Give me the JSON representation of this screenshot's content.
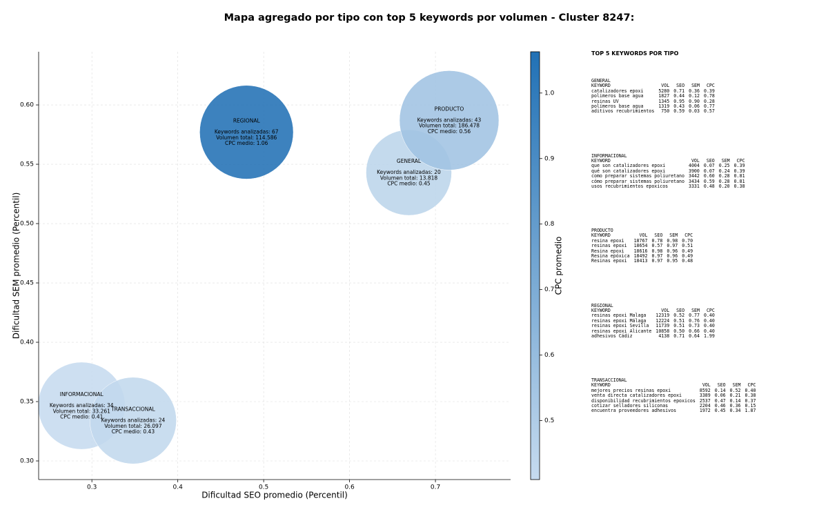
{
  "chart_data": {
    "type": "bubble",
    "title": "Mapa agregado por tipo con top 5 keywords por volumen - Cluster 8247:",
    "x_label": "Dificultad SEO promedio (Percentil)",
    "y_label": "Dificultad SEM promedio (Percentil)",
    "colorbar_label": "CPC promedio",
    "xlim": [
      0.238,
      0.7875
    ],
    "ylim": [
      0.2843,
      0.6448
    ],
    "xticks": [
      0.3,
      0.4,
      0.5,
      0.6,
      0.7
    ],
    "yticks": [
      {
        "value": 0.3,
        "label": "0.30"
      },
      {
        "value": 0.35,
        "label": "0.35"
      },
      {
        "value": 0.4,
        "label": "0.40"
      },
      {
        "value": 0.45,
        "label": "0.45"
      },
      {
        "value": 0.5,
        "label": "0.50"
      },
      {
        "value": 0.55,
        "label": "0.55"
      },
      {
        "value": 0.6,
        "label": "0.60"
      }
    ],
    "clim": [
      0.41,
      1.063
    ],
    "cticks": [
      0.5,
      0.6,
      0.7,
      0.8,
      0.9,
      {
        "value": 1.0,
        "label": "1.0"
      }
    ],
    "colormap": [
      "#c6dbef",
      "#2171b5"
    ],
    "grid": true,
    "series": [
      {
        "name": "GENERAL",
        "x": 0.669,
        "y": 0.543,
        "volume": 13818,
        "cpc": 0.45,
        "value_labels": [
          "Keywords analizadas: 20",
          "Volumen total: 13.818",
          "CPC medio: 0.45"
        ]
      },
      {
        "name": "INFORMACIONAL",
        "x": 0.288,
        "y": 0.3465,
        "volume": 33261,
        "cpc": 0.41,
        "value_labels": [
          "Keywords analizadas: 34",
          "Volumen total: 33.261",
          "CPC medio: 0.41"
        ]
      },
      {
        "name": "PRODUCTO",
        "x": 0.716,
        "y": 0.587,
        "volume": 186478,
        "cpc": 0.56,
        "value_labels": [
          "Keywords analizadas: 43",
          "Volumen total: 186.478",
          "CPC medio: 0.56"
        ]
      },
      {
        "name": "REGIONAL",
        "x": 0.48,
        "y": 0.577,
        "volume": 114586,
        "cpc": 1.06,
        "value_labels": [
          "Keywords analizadas: 67",
          "Volumen total: 114.586",
          "CPC medio: 1.06"
        ]
      },
      {
        "name": "TRANSACCIONAL",
        "x": 0.348,
        "y": 0.334,
        "volume": 26097,
        "cpc": 0.43,
        "value_labels": [
          "Keywords analizadas: 24",
          "Volumen total: 26.097",
          "CPC medio: 0.43"
        ]
      }
    ]
  },
  "keyword_panel": {
    "title": "TOP 5 KEYWORDS POR TIPO",
    "columns": [
      "KEYWORD",
      "VOL",
      "SEO",
      "SEM",
      "CPC"
    ],
    "sections": [
      {
        "name": "GENERAL",
        "rows": [
          [
            "catalizadores epoxi",
            "5280",
            "0.71",
            "0.36",
            "0.39"
          ],
          [
            "polimeros base agua",
            "1827",
            "0.44",
            "0.12",
            "0.78"
          ],
          [
            "resinas UV",
            "1345",
            "0.95",
            "0.90",
            "0.28"
          ],
          [
            "polímeros base agua",
            "1319",
            "0.43",
            "0.06",
            "0.77"
          ],
          [
            "aditivos recubrimientos",
            "750",
            "0.59",
            "0.03",
            "0.57"
          ]
        ]
      },
      {
        "name": "INFORMACIONAL",
        "rows": [
          [
            "que son catalizadores epoxi",
            "4004",
            "0.07",
            "0.25",
            "0.39"
          ],
          [
            "qué son catalizadores epoxi",
            "3900",
            "0.07",
            "0.24",
            "0.39"
          ],
          [
            "como preparar sistemas poliuretano",
            "3442",
            "0.60",
            "0.28",
            "0.81"
          ],
          [
            "cómo preparar sistemas poliuretano",
            "3434",
            "0.59",
            "0.28",
            "0.81"
          ],
          [
            "usos recubrimientos epoxicos",
            "3331",
            "0.48",
            "0.20",
            "0.38"
          ]
        ]
      },
      {
        "name": "PRODUCTO",
        "rows": [
          [
            "resina epoxi",
            "18767",
            "0.78",
            "0.98",
            "0.70"
          ],
          [
            "resinas epoxi",
            "18654",
            "0.57",
            "0.97",
            "0.51"
          ],
          [
            "Resina epoxi",
            "18616",
            "0.98",
            "0.96",
            "0.49"
          ],
          [
            "Resina epóxica",
            "18492",
            "0.97",
            "0.96",
            "0.49"
          ],
          [
            "Resinas epoxi",
            "18413",
            "0.97",
            "0.95",
            "0.48"
          ]
        ]
      },
      {
        "name": "REGIONAL",
        "rows": [
          [
            "resinas epoxi Malaga",
            "12319",
            "0.52",
            "0.77",
            "0.40"
          ],
          [
            "resinas epoxi Málaga",
            "12224",
            "0.51",
            "0.76",
            "0.40"
          ],
          [
            "resinas epoxi Sevilla",
            "11739",
            "0.51",
            "0.73",
            "0.40"
          ],
          [
            "resinas epoxi Alicante",
            "10858",
            "0.50",
            "0.66",
            "0.40"
          ],
          [
            "adhesivos Cádiz",
            "4138",
            "0.71",
            "0.64",
            "1.99"
          ]
        ]
      },
      {
        "name": "TRANSACCIONAL",
        "rows": [
          [
            "mejores precios resinas epoxi",
            "8592",
            "0.14",
            "0.52",
            "0.40"
          ],
          [
            "venta directa catalizadores epoxi",
            "3389",
            "0.06",
            "0.21",
            "0.38"
          ],
          [
            "disponibilidad recubrimientos epoxicos",
            "2537",
            "0.47",
            "0.14",
            "0.37"
          ],
          [
            "cotizar selladores siliconas",
            "2204",
            "0.46",
            "0.36",
            "0.15"
          ],
          [
            "encuentra proveedores adhesivos",
            "1972",
            "0.45",
            "0.34",
            "1.87"
          ]
        ]
      }
    ]
  }
}
